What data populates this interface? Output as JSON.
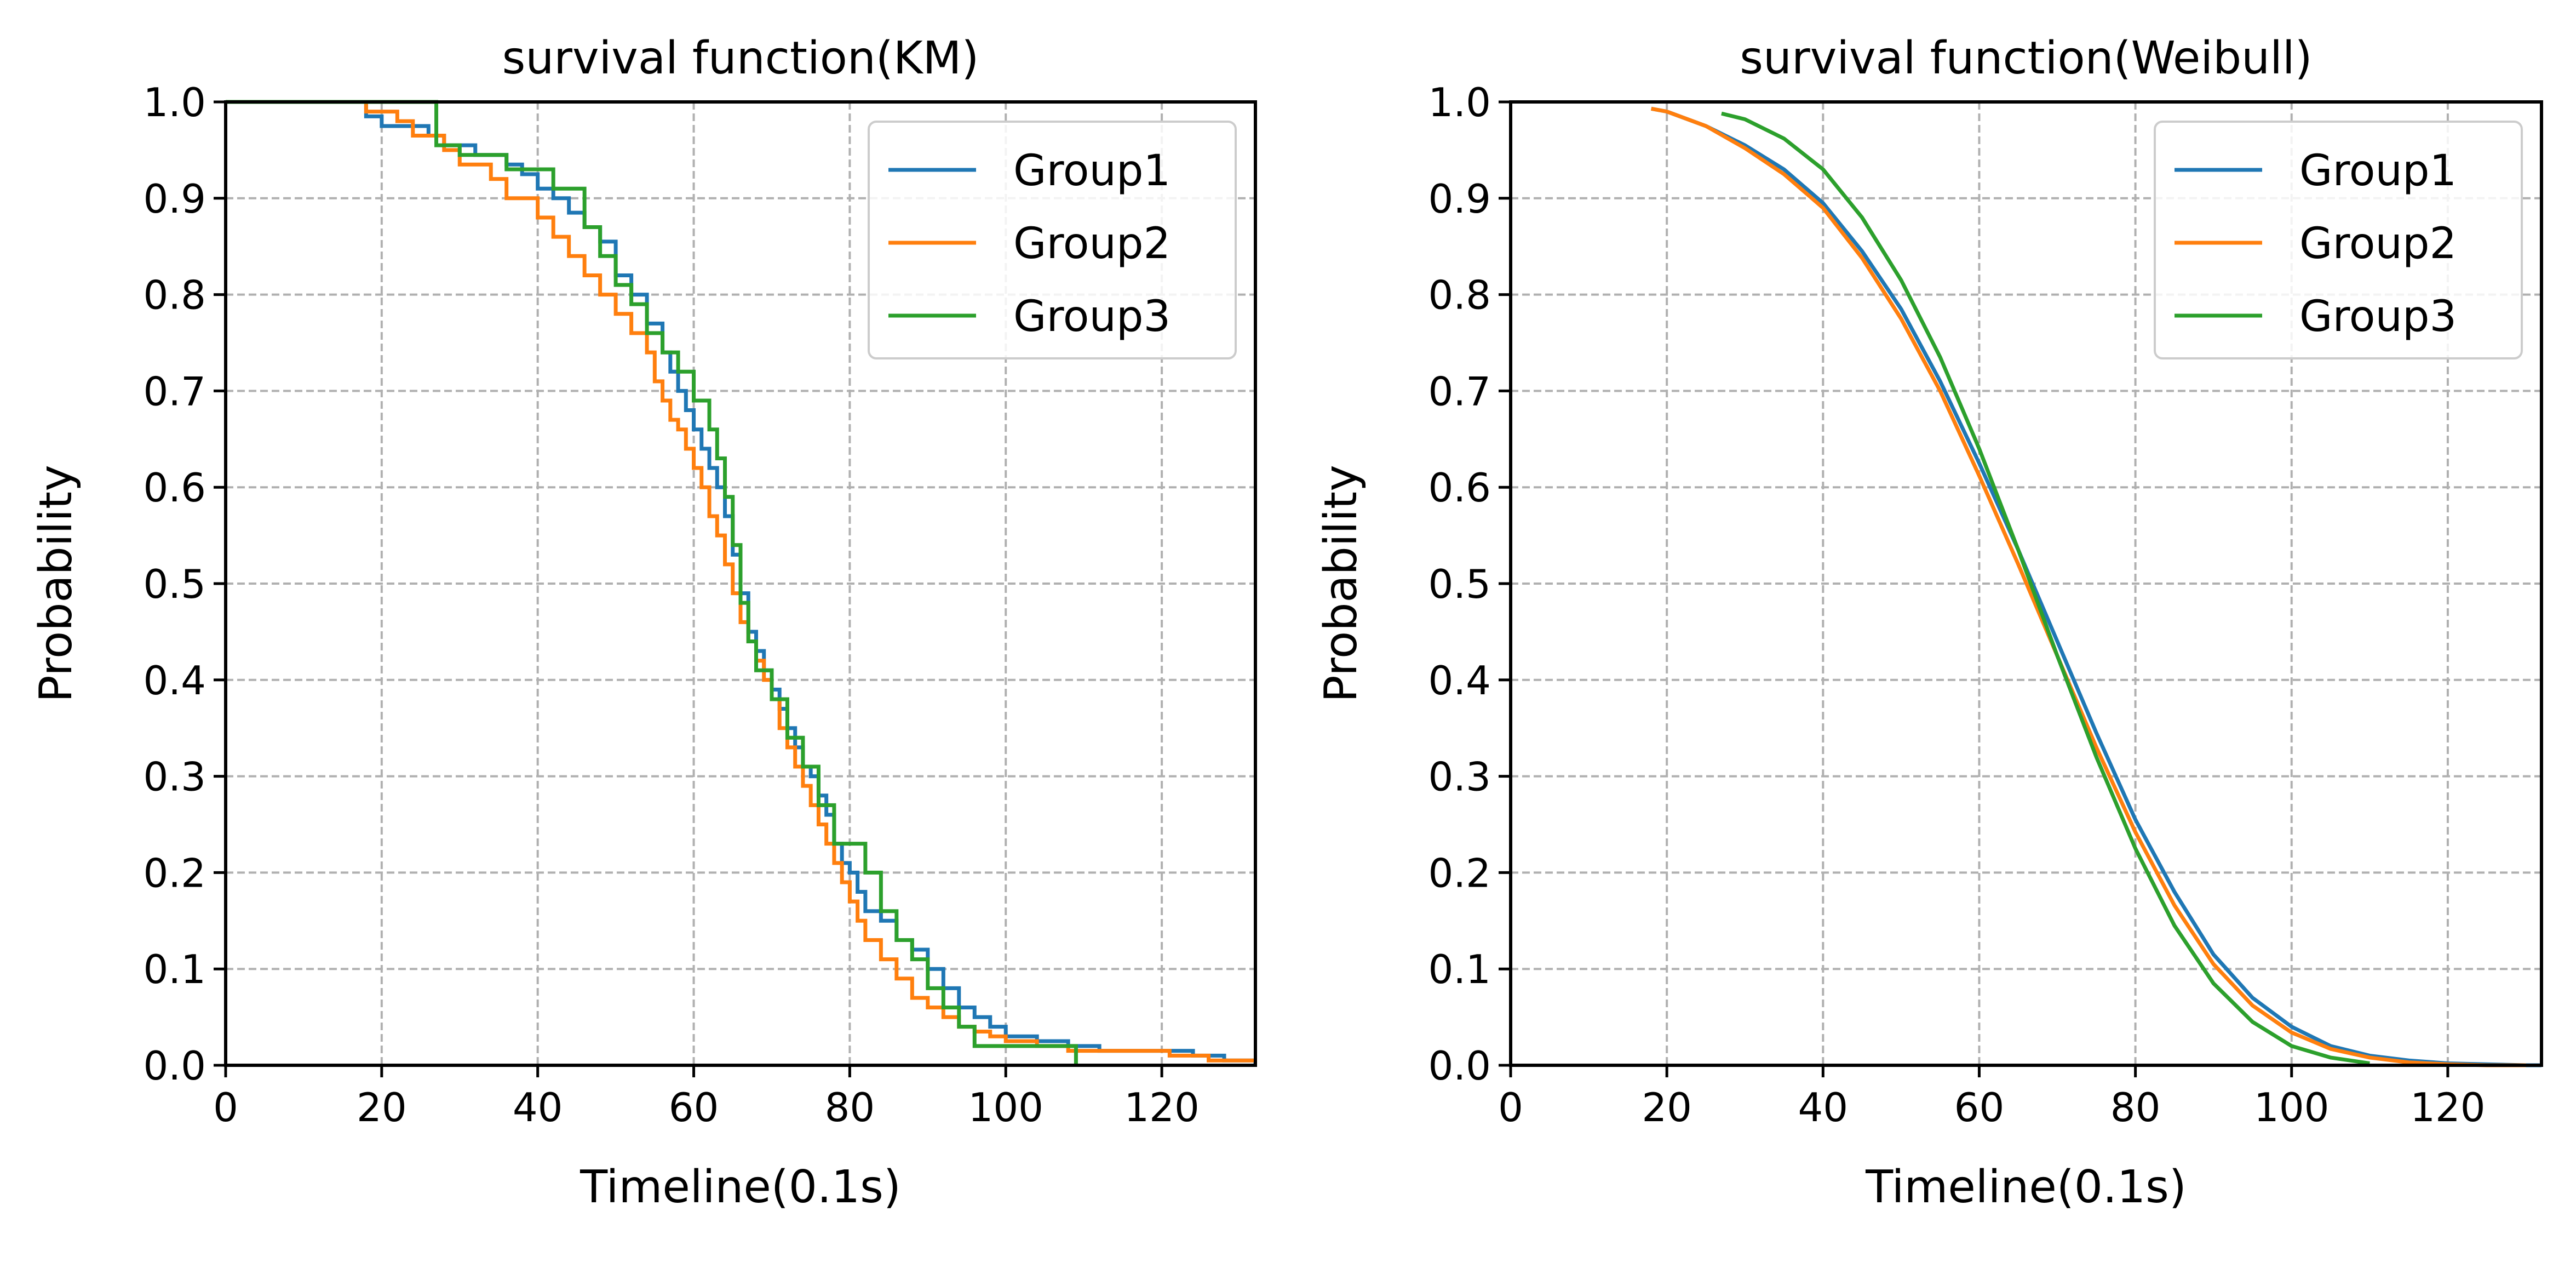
{
  "chart_data": [
    {
      "type": "line",
      "title": "survival function(KM)",
      "xlabel": "Timeline(0.1s)",
      "ylabel": "Probability",
      "xlim": [
        0,
        132
      ],
      "ylim": [
        0,
        1.0
      ],
      "xticks": [
        0,
        20,
        40,
        60,
        80,
        100,
        120
      ],
      "xtick_labels": [
        "0",
        "20",
        "40",
        "60",
        "80",
        "100",
        "120"
      ],
      "yticks": [
        0.0,
        0.1,
        0.2,
        0.3,
        0.4,
        0.5,
        0.6,
        0.7,
        0.8,
        0.9,
        1.0
      ],
      "ytick_labels": [
        "0.0",
        "0.1",
        "0.2",
        "0.3",
        "0.4",
        "0.5",
        "0.6",
        "0.7",
        "0.8",
        "0.9",
        "1.0"
      ],
      "grid": true,
      "legend": "top-right",
      "step": true,
      "series": [
        {
          "name": "Group1",
          "color": "#1f77b4",
          "x": [
            0,
            18,
            20,
            26,
            28,
            32,
            36,
            38,
            40,
            42,
            44,
            46,
            48,
            50,
            52,
            54,
            56,
            57,
            58,
            59,
            60,
            61,
            62,
            63,
            64,
            65,
            66,
            67,
            68,
            69,
            70,
            71,
            72,
            73,
            74,
            75,
            76,
            77,
            78,
            79,
            80,
            81,
            82,
            84,
            86,
            88,
            90,
            92,
            94,
            96,
            98,
            100,
            104,
            108,
            112,
            116,
            120,
            124,
            128,
            132
          ],
          "y": [
            1.0,
            0.985,
            0.975,
            0.965,
            0.955,
            0.945,
            0.935,
            0.925,
            0.91,
            0.9,
            0.885,
            0.87,
            0.855,
            0.82,
            0.8,
            0.77,
            0.74,
            0.72,
            0.7,
            0.68,
            0.66,
            0.64,
            0.62,
            0.6,
            0.57,
            0.53,
            0.49,
            0.45,
            0.43,
            0.41,
            0.39,
            0.37,
            0.35,
            0.33,
            0.31,
            0.3,
            0.28,
            0.26,
            0.23,
            0.21,
            0.2,
            0.18,
            0.16,
            0.15,
            0.13,
            0.12,
            0.1,
            0.08,
            0.06,
            0.05,
            0.04,
            0.03,
            0.025,
            0.02,
            0.015,
            0.015,
            0.015,
            0.01,
            0.005,
            0.0
          ]
        },
        {
          "name": "Group2",
          "color": "#ff7f0e",
          "x": [
            0,
            18,
            22,
            24,
            28,
            30,
            34,
            36,
            40,
            42,
            44,
            46,
            48,
            50,
            52,
            54,
            55,
            56,
            57,
            58,
            59,
            60,
            61,
            62,
            63,
            64,
            65,
            66,
            67,
            68,
            69,
            70,
            71,
            72,
            73,
            74,
            75,
            76,
            77,
            78,
            79,
            80,
            81,
            82,
            84,
            86,
            88,
            90,
            92,
            94,
            96,
            98,
            100,
            104,
            108,
            112,
            116,
            121,
            126,
            132
          ],
          "y": [
            1.0,
            0.99,
            0.98,
            0.965,
            0.95,
            0.935,
            0.92,
            0.9,
            0.88,
            0.86,
            0.84,
            0.82,
            0.8,
            0.78,
            0.76,
            0.74,
            0.71,
            0.69,
            0.67,
            0.66,
            0.64,
            0.62,
            0.6,
            0.57,
            0.55,
            0.52,
            0.49,
            0.46,
            0.44,
            0.42,
            0.4,
            0.38,
            0.35,
            0.33,
            0.31,
            0.29,
            0.27,
            0.25,
            0.23,
            0.21,
            0.19,
            0.17,
            0.15,
            0.13,
            0.11,
            0.09,
            0.07,
            0.06,
            0.05,
            0.04,
            0.035,
            0.03,
            0.025,
            0.02,
            0.015,
            0.015,
            0.015,
            0.01,
            0.005,
            0.005
          ]
        },
        {
          "name": "Group3",
          "color": "#2ca02c",
          "x": [
            0,
            27,
            30,
            36,
            42,
            46,
            48,
            50,
            52,
            54,
            56,
            58,
            60,
            62,
            63,
            64,
            65,
            66,
            67,
            68,
            70,
            72,
            74,
            76,
            78,
            82,
            84,
            86,
            88,
            90,
            92,
            94,
            96,
            100,
            104,
            109
          ],
          "y": [
            1.0,
            0.955,
            0.945,
            0.93,
            0.91,
            0.87,
            0.84,
            0.81,
            0.79,
            0.76,
            0.74,
            0.72,
            0.69,
            0.66,
            0.63,
            0.59,
            0.54,
            0.48,
            0.44,
            0.41,
            0.38,
            0.34,
            0.31,
            0.27,
            0.23,
            0.2,
            0.16,
            0.13,
            0.11,
            0.08,
            0.06,
            0.04,
            0.02,
            0.02,
            0.02,
            0.0
          ]
        }
      ]
    },
    {
      "type": "line",
      "title": "survival function(Weibull)",
      "xlabel": "Timeline(0.1s)",
      "ylabel": "Probability",
      "xlim": [
        0,
        132
      ],
      "ylim": [
        0,
        1.0
      ],
      "xticks": [
        0,
        20,
        40,
        60,
        80,
        100,
        120
      ],
      "xtick_labels": [
        "0",
        "20",
        "40",
        "60",
        "80",
        "100",
        "120"
      ],
      "yticks": [
        0.0,
        0.1,
        0.2,
        0.3,
        0.4,
        0.5,
        0.6,
        0.7,
        0.8,
        0.9,
        1.0
      ],
      "ytick_labels": [
        "0.0",
        "0.1",
        "0.2",
        "0.3",
        "0.4",
        "0.5",
        "0.6",
        "0.7",
        "0.8",
        "0.9",
        "1.0"
      ],
      "grid": true,
      "legend": "top-right",
      "step": false,
      "series": [
        {
          "name": "Group1",
          "color": "#1f77b4",
          "x": [
            18,
            20,
            25,
            30,
            35,
            40,
            45,
            50,
            55,
            60,
            65,
            70,
            75,
            80,
            85,
            90,
            95,
            100,
            105,
            110,
            115,
            120,
            125,
            130,
            132
          ],
          "y": [
            0.993,
            0.99,
            0.975,
            0.955,
            0.93,
            0.895,
            0.845,
            0.785,
            0.71,
            0.625,
            0.535,
            0.44,
            0.345,
            0.255,
            0.18,
            0.115,
            0.07,
            0.04,
            0.02,
            0.01,
            0.005,
            0.002,
            0.001,
            0.0,
            0.0
          ]
        },
        {
          "name": "Group2",
          "color": "#ff7f0e",
          "x": [
            18,
            20,
            25,
            30,
            35,
            40,
            45,
            50,
            55,
            60,
            65,
            70,
            75,
            80,
            85,
            90,
            95,
            100,
            105,
            110,
            115,
            120,
            125,
            130
          ],
          "y": [
            0.993,
            0.99,
            0.975,
            0.952,
            0.925,
            0.89,
            0.838,
            0.775,
            0.7,
            0.612,
            0.52,
            0.425,
            0.33,
            0.242,
            0.166,
            0.105,
            0.062,
            0.034,
            0.017,
            0.008,
            0.003,
            0.001,
            0.0,
            0.0
          ]
        },
        {
          "name": "Group3",
          "color": "#2ca02c",
          "x": [
            27,
            30,
            35,
            40,
            45,
            50,
            55,
            60,
            65,
            70,
            75,
            80,
            85,
            90,
            95,
            100,
            105,
            110
          ],
          "y": [
            0.988,
            0.982,
            0.962,
            0.93,
            0.88,
            0.815,
            0.735,
            0.64,
            0.535,
            0.425,
            0.32,
            0.225,
            0.145,
            0.085,
            0.045,
            0.02,
            0.008,
            0.002
          ]
        }
      ]
    }
  ]
}
